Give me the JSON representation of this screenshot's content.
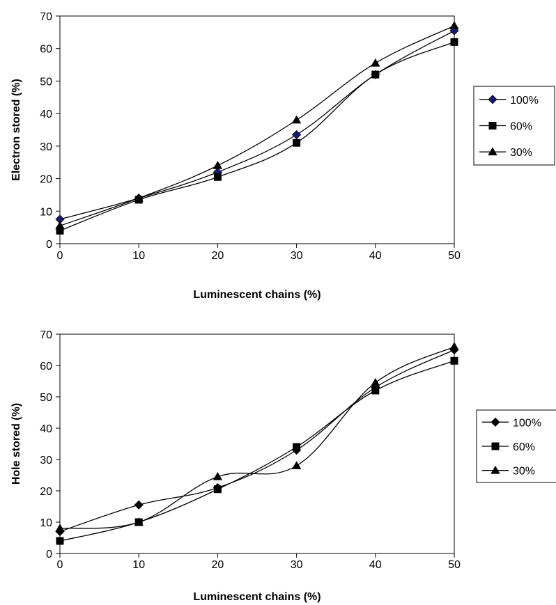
{
  "chart_data": [
    {
      "type": "line",
      "xlabel": "Luminescent chains (%)",
      "ylabel": "Electron stored (%)",
      "xlim": [
        0,
        50
      ],
      "ylim": [
        0,
        70
      ],
      "xticks": [
        "0",
        "10",
        "20",
        "30",
        "40",
        "50"
      ],
      "yticks": [
        "0",
        "10",
        "20",
        "30",
        "40",
        "50",
        "60",
        "70"
      ],
      "x": [
        0,
        10,
        20,
        30,
        40,
        50
      ],
      "legend_position": "right",
      "grid": false,
      "series": [
        {
          "name": "100%",
          "marker": "diamond",
          "marker_color": "#1a1a6e",
          "values": [
            7.5,
            14.0,
            22.0,
            33.5,
            52.0,
            65.5
          ]
        },
        {
          "name": "60%",
          "marker": "square",
          "marker_color": "#000000",
          "values": [
            4.0,
            13.5,
            20.5,
            31.0,
            52.0,
            62.0
          ]
        },
        {
          "name": "30%",
          "marker": "triangle",
          "marker_color": "#000000",
          "values": [
            5.5,
            14.0,
            24.0,
            38.0,
            55.5,
            67.0
          ]
        }
      ]
    },
    {
      "type": "line",
      "xlabel": "Luminescent chains (%)",
      "ylabel": "Hole stored (%)",
      "xlim": [
        0,
        50
      ],
      "ylim": [
        0,
        70
      ],
      "xticks": [
        "0",
        "10",
        "20",
        "30",
        "40",
        "50"
      ],
      "yticks": [
        "0",
        "10",
        "20",
        "30",
        "40",
        "50",
        "60",
        "70"
      ],
      "x": [
        0,
        10,
        20,
        30,
        40,
        50
      ],
      "legend_position": "right",
      "grid": false,
      "series": [
        {
          "name": "100%",
          "marker": "diamond",
          "marker_color": "#000000",
          "values": [
            7.0,
            15.5,
            21.0,
            33.0,
            53.0,
            65.0
          ]
        },
        {
          "name": "60%",
          "marker": "square",
          "marker_color": "#000000",
          "values": [
            4.0,
            10.0,
            20.5,
            34.0,
            52.0,
            61.5
          ]
        },
        {
          "name": "30%",
          "marker": "triangle",
          "marker_color": "#000000",
          "values": [
            8.0,
            10.0,
            24.5,
            28.0,
            54.5,
            66.0
          ]
        }
      ]
    }
  ]
}
